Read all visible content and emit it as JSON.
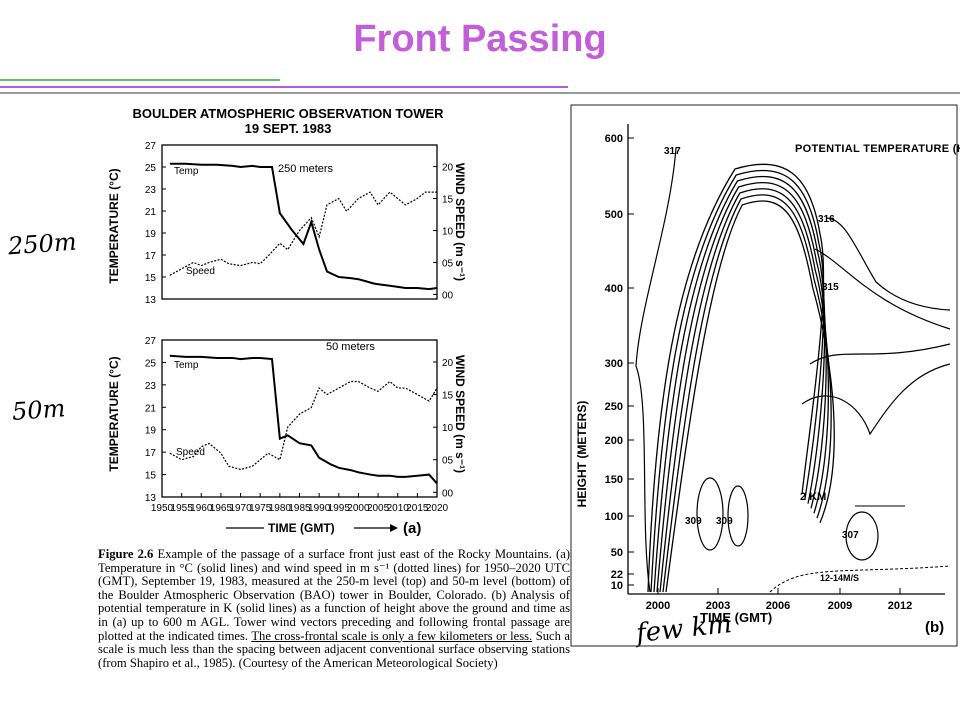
{
  "slide": {
    "title": "Front Passing",
    "accent_color": "#c45ed8",
    "rule_green": "#5cc85c",
    "rule_purple": "#b45cd8",
    "annotations": {
      "level_250": "250m",
      "level_50": "50m",
      "few_km": "few km"
    }
  },
  "caption": {
    "figure_label": "Figure 2.6",
    "text_before_underline": "Example of the passage of a surface front just east of the Rocky Mountains. (a) Temperature in °C (solid lines) and wind speed in m s⁻¹ (dotted lines) for 1950–2020 UTC (GMT), September 19, 1983, measured at the 250-m level (top) and 50-m level (bottom) of the Boulder Atmospheric Observation (BAO) tower in Boulder, Colorado. (b) Analysis of potential temperature in K (solid lines) as a function of height above the ground and time as in (a) up to 600 m AGL. Tower wind vectors preceding and following frontal passage are plotted at the indicated times.",
    "underlined": "The cross-frontal scale is only a few kilometers or less.",
    "text_after_underline": "Such a scale is much less than the spacing between adjacent conventional surface observing stations (from Shapiro et al., 1985). (Courtesy of the American Meteorological Society)"
  },
  "chart_data": [
    {
      "type": "line",
      "panel": "(a) top",
      "title": "BOULDER ATMOSPHERIC OBSERVATION TOWER",
      "subtitle": "19 SEPT. 1983",
      "level_label": "250 meters",
      "ylabel": "TEMPERATURE (°C)",
      "y2label": "WIND SPEED (m s⁻¹)",
      "ylim": [
        13,
        27
      ],
      "y2lim": [
        0,
        20
      ],
      "yticks": [
        "13",
        "15",
        "17",
        "19",
        "21",
        "23",
        "25",
        "27"
      ],
      "y2ticks": [
        "00",
        "05",
        "10",
        "15",
        "20"
      ],
      "xlim": [
        1950,
        2020
      ],
      "series": [
        {
          "name": "Temp",
          "style": "solid",
          "x": [
            1952,
            1956,
            1960,
            1964,
            1968,
            1970,
            1973,
            1975,
            1978,
            1980,
            1983,
            1986,
            1988,
            1990,
            1992,
            1995,
            1998,
            2000,
            2002,
            2004,
            2006,
            2008,
            2010,
            2012,
            2015,
            2018,
            2020
          ],
          "y": [
            25.3,
            25.3,
            25.2,
            25.2,
            25.1,
            25.0,
            25.1,
            25.0,
            25.0,
            20.8,
            19.3,
            18.0,
            20.0,
            17.5,
            15.5,
            15.0,
            14.9,
            14.8,
            14.6,
            14.4,
            14.3,
            14.2,
            14.1,
            14.0,
            14.0,
            13.9,
            14.0
          ]
        },
        {
          "name": "Speed",
          "style": "dotted",
          "x": [
            1952,
            1955,
            1958,
            1960,
            1962,
            1965,
            1967,
            1970,
            1973,
            1975,
            1977,
            1980,
            1982,
            1985,
            1988,
            1990,
            1992,
            1995,
            1997,
            2000,
            2003,
            2005,
            2008,
            2010,
            2012,
            2015,
            2017,
            2020
          ],
          "y": [
            3,
            4,
            5,
            4.5,
            5,
            5.5,
            4.8,
            4.5,
            5,
            4.8,
            6,
            8,
            7,
            10,
            12,
            9,
            14,
            15,
            13,
            15,
            16,
            14,
            16,
            15,
            14,
            15,
            16,
            16
          ]
        }
      ]
    },
    {
      "type": "line",
      "panel": "(a) bottom",
      "level_label": "50 meters",
      "ylabel": "TEMPERATURE (°C)",
      "y2label": "WIND SPEED (m s⁻¹)",
      "xlabel": "TIME (GMT)",
      "panel_label": "(a)",
      "ylim": [
        13,
        27
      ],
      "y2lim": [
        0,
        20
      ],
      "yticks": [
        "13",
        "15",
        "17",
        "19",
        "21",
        "23",
        "25",
        "27"
      ],
      "y2ticks": [
        "00",
        "05",
        "10",
        "15",
        "20"
      ],
      "xticks": [
        "1950",
        "1955",
        "1960",
        "1965",
        "1970",
        "1975",
        "1980",
        "1985",
        "1990",
        "1995",
        "2000",
        "2005",
        "2010",
        "2015",
        "2020"
      ],
      "xlim": [
        1950,
        2020
      ],
      "series": [
        {
          "name": "Temp",
          "style": "solid",
          "x": [
            1952,
            1956,
            1960,
            1964,
            1968,
            1970,
            1973,
            1975,
            1978,
            1980,
            1982,
            1985,
            1988,
            1990,
            1993,
            1995,
            1998,
            2000,
            2003,
            2005,
            2008,
            2010,
            2012,
            2015,
            2018,
            2020
          ],
          "y": [
            25.6,
            25.5,
            25.5,
            25.4,
            25.4,
            25.3,
            25.4,
            25.4,
            25.3,
            18.2,
            18.5,
            17.8,
            17.6,
            16.5,
            15.9,
            15.6,
            15.4,
            15.2,
            15.0,
            14.9,
            14.9,
            14.8,
            14.8,
            14.9,
            15.0,
            14.2
          ]
        },
        {
          "name": "Speed",
          "style": "dotted",
          "x": [
            1952,
            1955,
            1958,
            1960,
            1962,
            1965,
            1967,
            1970,
            1973,
            1975,
            1977,
            1980,
            1982,
            1985,
            1988,
            1990,
            1992,
            1995,
            1998,
            2000,
            2003,
            2005,
            2008,
            2010,
            2012,
            2015,
            2018,
            2020
          ],
          "y": [
            6,
            5,
            5.5,
            7,
            7.5,
            6,
            4,
            3.5,
            4,
            5,
            6,
            5,
            10,
            12,
            13,
            16,
            15,
            16,
            17,
            17,
            16,
            15.5,
            17,
            16,
            16,
            15,
            14,
            16
          ]
        }
      ]
    },
    {
      "type": "line",
      "panel": "(b)",
      "title": "POTENTIAL TEMPERATURE (K)",
      "ylabel": "HEIGHT (METERS)",
      "xlabel": "TIME (GMT)",
      "panel_label": "(b)",
      "yticks": [
        "10",
        "22",
        "50",
        "100",
        "150",
        "200",
        "250",
        "300",
        "400",
        "500",
        "600"
      ],
      "xticks": [
        "2000",
        "2003",
        "2006",
        "2009",
        "2012"
      ],
      "contour_labels": [
        "317",
        "316",
        "315",
        "309",
        "309",
        "307"
      ],
      "scale_label": "2 KM",
      "wind_label": "12-14M/S"
    }
  ]
}
